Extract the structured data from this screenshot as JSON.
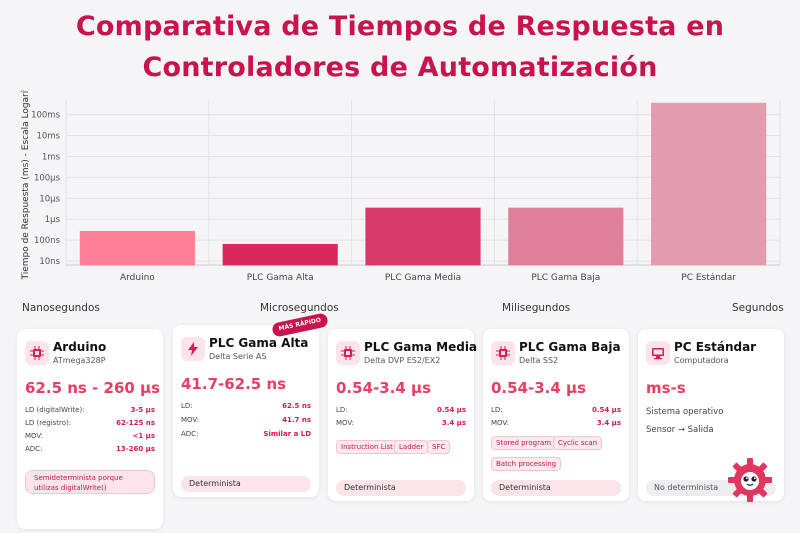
{
  "title": "Comparativa de Tiempos de Respuesta en Controladores de Automatización",
  "chart_data": {
    "type": "bar",
    "ylabel": "Tiempo de Respuesta (ms) - Escala Logarítmica",
    "yscale": "log",
    "ytick_values": [
      1e-05,
      0.0001,
      0.001,
      0.01,
      0.1,
      1,
      10,
      100
    ],
    "ytick_labels": [
      "10ns",
      "100ns",
      "1μs",
      "10μs",
      "100μs",
      "1ms",
      "10ms",
      "100ms"
    ],
    "ylim": [
      6.5e-06,
      500
    ],
    "categories": [
      "Arduino",
      "PLC Gama Alta",
      "PLC Gama Media",
      "PLC Gama Baja",
      "PC Estándar"
    ],
    "values": [
      0.00026,
      6.25e-05,
      0.0034,
      0.0034,
      350
    ],
    "colors": [
      "#ff8097",
      "#d8285c",
      "#d7396a",
      "#e07f99",
      "#e29cae"
    ],
    "grid": true
  },
  "scale_labels": [
    "Nanosegundos",
    "Microsegundos",
    "Milisegundos",
    "Segundos"
  ],
  "cards": [
    {
      "name": "Arduino",
      "sub": "ATmega328P",
      "range": "62.5 ns - 260 μs",
      "rows": [
        {
          "k": "LD (digitalWrite):",
          "v": "3-5 μs"
        },
        {
          "k": "LD (registro):",
          "v": "62-125 ns"
        },
        {
          "k": "MOV:",
          "v": "<1 μs"
        },
        {
          "k": "ADC:",
          "v": "13-260 μs"
        }
      ],
      "footer": "Semideterminista porque utilizas digitalWrite()"
    },
    {
      "name": "PLC Gama Alta",
      "sub": "Delta Serie AS",
      "range": "41.7-62.5 ns",
      "badge": "MÁS RÁPIDO",
      "rows": [
        {
          "k": "LD:",
          "v": "62.5 ns"
        },
        {
          "k": "MOV:",
          "v": "41.7 ns"
        },
        {
          "k": "ADC:",
          "v": "Similar a LD"
        }
      ],
      "footer": "Determinista"
    },
    {
      "name": "PLC Gama Media",
      "sub": "Delta DVP ES2/EX2",
      "range": "0.54-3.4 μs",
      "rows": [
        {
          "k": "LD:",
          "v": "0.54 μs"
        },
        {
          "k": "MOV:",
          "v": "3.4 μs"
        }
      ],
      "tags": [
        "Instruction List",
        "Ladder",
        "SFC"
      ],
      "footer": "Determinista"
    },
    {
      "name": "PLC Gama Baja",
      "sub": "Delta SS2",
      "range": "0.54-3.4 μs",
      "rows": [
        {
          "k": "LD:",
          "v": "0.54 μs"
        },
        {
          "k": "MOV:",
          "v": "3.4 μs"
        }
      ],
      "tags": [
        "Stored program",
        "Cyclic scan",
        "Batch processing"
      ],
      "footer": "Determinista"
    },
    {
      "name": "PC Estándar",
      "sub": "Computadora",
      "range": "ms-s",
      "lines": [
        "Sistema operativo",
        "Sensor → Salida"
      ],
      "footer": "No determinista"
    }
  ],
  "icons": [
    "chip-icon",
    "bolt-icon",
    "chip-icon",
    "chip-icon",
    "monitor-icon"
  ]
}
